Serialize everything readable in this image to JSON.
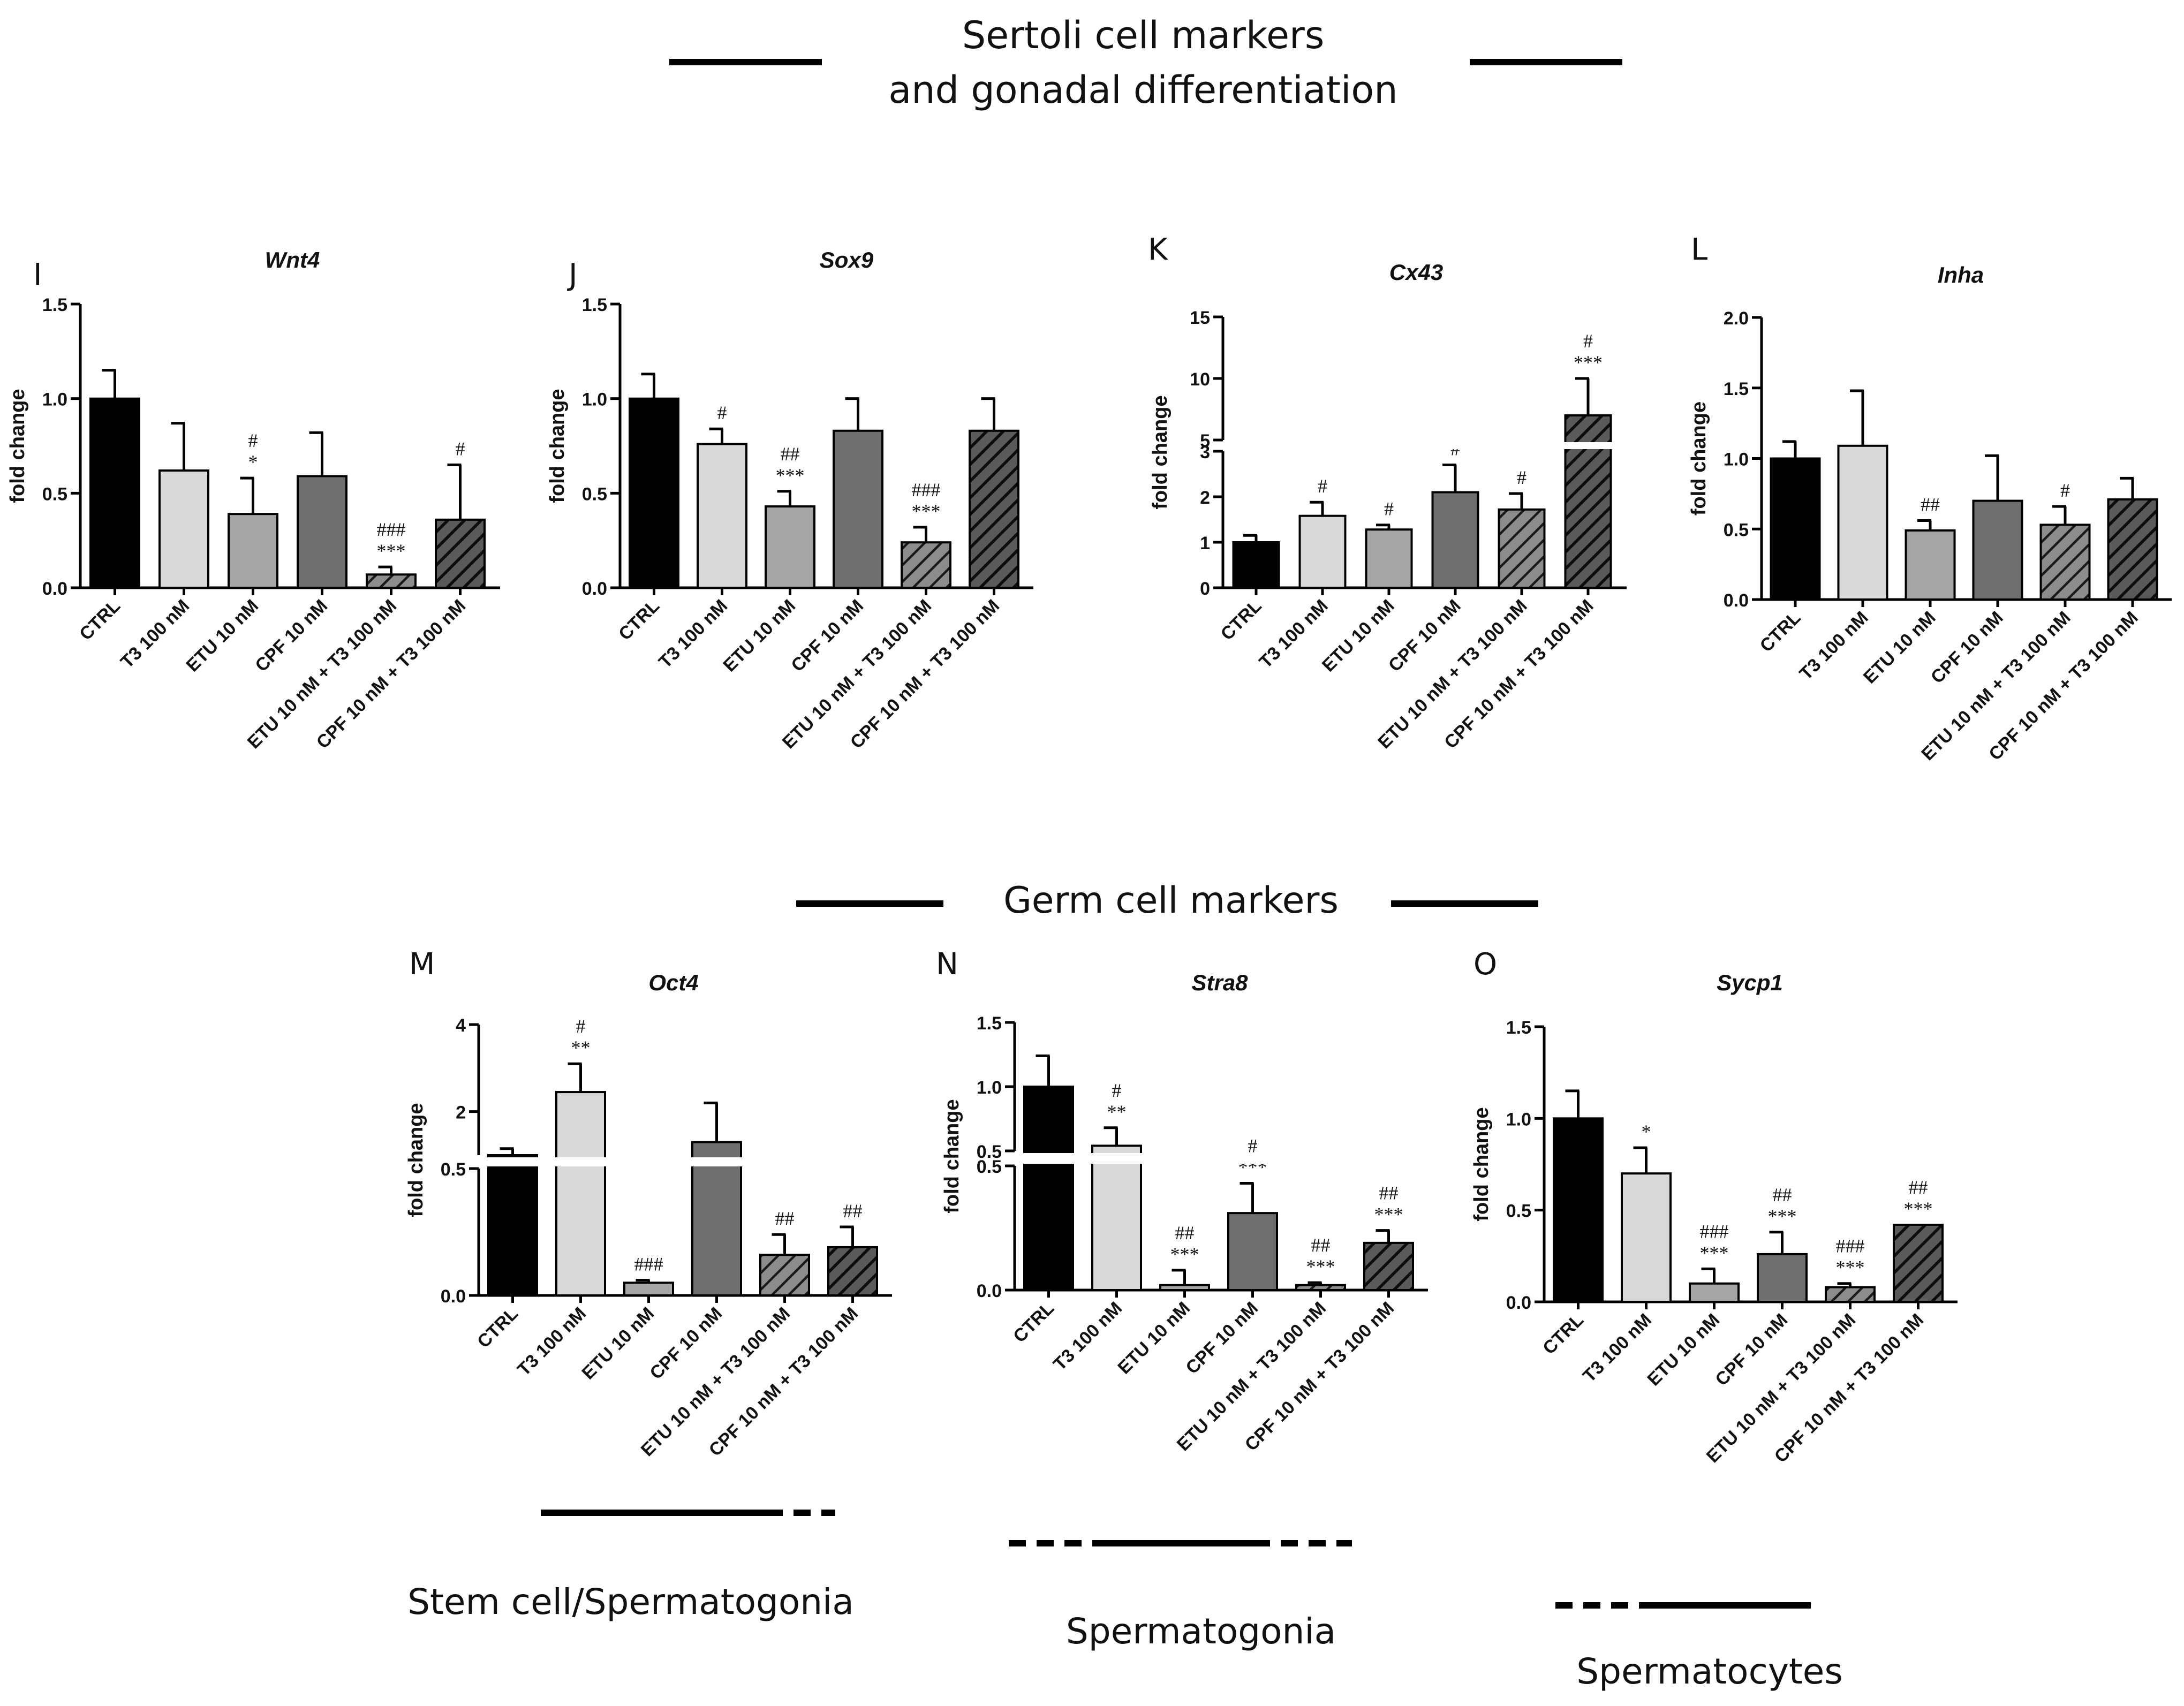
{
  "sections": {
    "sertoli_title_line1": "Sertoli cell markers",
    "sertoli_title_line2": "and gonadal differentiation",
    "germ_title": "Germ cell markers"
  },
  "stage_labels": {
    "stem": "Stem cell/Spermatogonia",
    "spermatogonia": "Spermatogonia",
    "spermatocytes": "Spermatocytes"
  },
  "colors": {
    "ctrl": "#000000",
    "t3": "#d9d9d9",
    "etu": "#a6a6a6",
    "cpf": "#6f6f6f",
    "etu_t3_hatch": "#4a4a4a",
    "cpf_t3_hatch": "#222222"
  },
  "chart_data": [
    {
      "panel": "I",
      "title": "Wnt4",
      "type": "bar",
      "ylabel": "fold change",
      "categories": [
        "CTRL",
        "T3 100 nM",
        "ETU 10 nM",
        "CPF 10 nM",
        "ETU 10 nM + T3 100 nM",
        "CPF 10 nM + T3 100 nM"
      ],
      "values": [
        1.0,
        0.62,
        0.39,
        0.59,
        0.07,
        0.36
      ],
      "errors": [
        0.15,
        0.25,
        0.19,
        0.23,
        0.04,
        0.29
      ],
      "significance": [
        "",
        "",
        "#\n*",
        "",
        "###\n***",
        "#"
      ],
      "ylim": [
        0,
        1.5
      ],
      "yticks": [
        "0.0",
        "0.5",
        "1.0",
        "1.5"
      ]
    },
    {
      "panel": "J",
      "title": "Sox9",
      "type": "bar",
      "ylabel": "fold change",
      "categories": [
        "CTRL",
        "T3 100 nM",
        "ETU 10 nM",
        "CPF 10 nM",
        "ETU 10 nM + T3 100 nM",
        "CPF 10 nM + T3 100 nM"
      ],
      "values": [
        1.0,
        0.76,
        0.43,
        0.83,
        0.24,
        0.83
      ],
      "errors": [
        0.13,
        0.08,
        0.08,
        0.17,
        0.08,
        0.17
      ],
      "significance": [
        "",
        "#",
        "##\n***",
        "",
        "###\n***",
        ""
      ],
      "ylim": [
        0,
        1.5
      ],
      "yticks": [
        "0.0",
        "0.5",
        "1.0",
        "1.5"
      ]
    },
    {
      "panel": "K",
      "title": "Cx43",
      "type": "bar",
      "ylabel": "fold change",
      "categories": [
        "CTRL",
        "T3 100 nM",
        "ETU 10 nM",
        "CPF 10 nM",
        "ETU 10 nM + T3 100 nM",
        "CPF 10 nM + T3 100 nM"
      ],
      "values": [
        1.0,
        1.58,
        1.28,
        2.1,
        1.72,
        7.0
      ],
      "errors": [
        0.15,
        0.3,
        0.1,
        0.6,
        0.35,
        3.0
      ],
      "significance": [
        "",
        "#",
        "#",
        "#",
        "#",
        "#\n***"
      ],
      "ylim": [
        0,
        15
      ],
      "axis_break": [
        3,
        5
      ],
      "yticks": [
        "0",
        "1",
        "2",
        "3",
        "5",
        "10",
        "15"
      ]
    },
    {
      "panel": "L",
      "title": "Inha",
      "type": "bar",
      "ylabel": "fold change",
      "categories": [
        "CTRL",
        "T3 100 nM",
        "ETU 10 nM",
        "CPF 10 nM",
        "ETU 10 nM + T3 100 nM",
        "CPF 10 nM + T3 100 nM"
      ],
      "values": [
        1.0,
        1.09,
        0.49,
        0.7,
        0.53,
        0.71
      ],
      "errors": [
        0.12,
        0.39,
        0.07,
        0.32,
        0.13,
        0.15
      ],
      "significance": [
        "",
        "",
        "##",
        "",
        "#",
        ""
      ],
      "ylim": [
        0,
        2.0
      ],
      "yticks": [
        "0.0",
        "0.5",
        "1.0",
        "1.5",
        "2.0"
      ]
    },
    {
      "panel": "M",
      "title": "Oct4",
      "type": "bar",
      "ylabel": "fold change",
      "categories": [
        "CTRL",
        "T3 100 nM",
        "ETU 10 nM",
        "CPF 10 nM",
        "ETU 10 nM + T3 100 nM",
        "CPF 10 nM + T3 100 nM"
      ],
      "values": [
        1.0,
        2.45,
        0.05,
        1.3,
        0.16,
        0.19
      ],
      "errors": [
        0.15,
        0.65,
        0.01,
        0.9,
        0.08,
        0.08
      ],
      "significance": [
        "",
        "#\n**",
        "###",
        "",
        "##",
        "##"
      ],
      "ylim": [
        0,
        4
      ],
      "axis_break": [
        0.5,
        1.0
      ],
      "yticks": [
        "0.0",
        "0.5",
        "2",
        "4"
      ]
    },
    {
      "panel": "N",
      "title": "Stra8",
      "type": "bar",
      "ylabel": "fold change",
      "categories": [
        "CTRL",
        "T3 100 nM",
        "ETU 10 nM",
        "CPF 10 nM",
        "ETU 10 nM + T3 100 nM",
        "CPF 10 nM + T3 100 nM"
      ],
      "values": [
        1.0,
        0.54,
        0.02,
        0.31,
        0.02,
        0.19
      ],
      "errors": [
        0.24,
        0.14,
        0.06,
        0.12,
        0.01,
        0.05
      ],
      "significance": [
        "",
        "#\n**",
        "##\n***",
        "#\n***",
        "##\n***",
        "##\n***"
      ],
      "ylim": [
        0,
        1.5
      ],
      "axis_break": [
        0.5,
        0.5
      ],
      "yticks": [
        "0.0",
        "0.5",
        "0.5",
        "1.0",
        "1.5"
      ]
    },
    {
      "panel": "O",
      "title": "Sycp1",
      "type": "bar",
      "ylabel": "fold change",
      "categories": [
        "CTRL",
        "T3 100 nM",
        "ETU 10 nM",
        "CPF 10 nM",
        "ETU 10 nM + T3 100 nM",
        "CPF 10 nM + T3 100 nM"
      ],
      "values": [
        1.0,
        0.7,
        0.1,
        0.26,
        0.08,
        0.42
      ],
      "errors": [
        0.15,
        0.14,
        0.08,
        0.12,
        0.02,
        0.0
      ],
      "significance": [
        "",
        "*",
        "###\n***",
        "##\n***",
        "###\n***",
        "##\n***"
      ],
      "ylim": [
        0,
        1.5
      ],
      "yticks": [
        "0.0",
        "0.5",
        "1.0",
        "1.5"
      ]
    }
  ]
}
